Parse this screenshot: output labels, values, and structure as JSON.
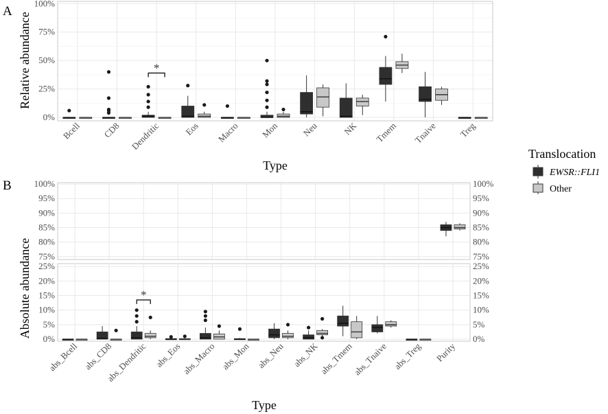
{
  "legend": {
    "title": "Translocation",
    "items": [
      {
        "label": "EWSR::FLI1",
        "italic": true,
        "color": "#2f2f2f"
      },
      {
        "label": "Other",
        "italic": false,
        "color": "#c8c8c8"
      }
    ]
  },
  "colors": {
    "group1": "#2f2f2f",
    "group2": "#c8c8c8",
    "outlier": "#1a1a1a",
    "grid": "#e8e8e8",
    "panelBorder": "#c9c9c9"
  },
  "chart_data": [
    {
      "panel": "A",
      "type": "box",
      "xlabel": "Type",
      "ylabel": "Relative abundance",
      "ylim": [
        -0.03,
        1.02
      ],
      "yticks": [
        0,
        0.25,
        0.5,
        0.75,
        1.0
      ],
      "ytick_labels": [
        "0%",
        "25%",
        "50%",
        "75%",
        "100%"
      ],
      "categories": [
        "Bcell",
        "CD8",
        "Dendritic",
        "Eos",
        "Macro",
        "Mon",
        "Neu",
        "NK",
        "Tmem",
        "Tnaive",
        "Treg"
      ],
      "significance": [
        {
          "category": "Dendritic",
          "label": "*",
          "y": 0.39
        }
      ],
      "series": [
        {
          "name": "EWSR::FLI1",
          "boxes": [
            {
              "min": 0,
              "q1": 0,
              "median": 0,
              "q3": 0,
              "max": 0,
              "outliers": [
                0.06
              ]
            },
            {
              "min": 0,
              "q1": 0,
              "median": 0,
              "q3": 0,
              "max": 0,
              "outliers": [
                0.04,
                0.06,
                0.07,
                0.17,
                0.4
              ]
            },
            {
              "min": 0,
              "q1": 0,
              "median": 0.01,
              "q3": 0.02,
              "max": 0.05,
              "outliers": [
                0.09,
                0.14,
                0.2,
                0.27
              ]
            },
            {
              "min": 0,
              "q1": 0,
              "median": 0.01,
              "q3": 0.1,
              "max": 0.19,
              "outliers": [
                0.28
              ]
            },
            {
              "min": 0,
              "q1": 0,
              "median": 0,
              "q3": 0,
              "max": 0,
              "outliers": [
                0.1
              ]
            },
            {
              "min": 0,
              "q1": 0,
              "median": 0,
              "q3": 0.02,
              "max": 0.05,
              "outliers": [
                0.09,
                0.15,
                0.22,
                0.29,
                0.32,
                0.5
              ]
            },
            {
              "min": 0,
              "q1": 0.03,
              "median": 0.05,
              "q3": 0.22,
              "max": 0.37,
              "outliers": []
            },
            {
              "min": 0,
              "q1": 0,
              "median": 0.01,
              "q3": 0.17,
              "max": 0.3,
              "outliers": []
            },
            {
              "min": 0.14,
              "q1": 0.29,
              "median": 0.34,
              "q3": 0.44,
              "max": 0.54,
              "outliers": [
                0.71
              ]
            },
            {
              "min": 0,
              "q1": 0.14,
              "median": 0.16,
              "q3": 0.27,
              "max": 0.4,
              "outliers": []
            },
            {
              "min": 0,
              "q1": 0,
              "median": 0,
              "q3": 0,
              "max": 0,
              "outliers": []
            }
          ]
        },
        {
          "name": "Other",
          "boxes": [
            {
              "min": 0,
              "q1": 0,
              "median": 0,
              "q3": 0,
              "max": 0,
              "outliers": []
            },
            {
              "min": 0,
              "q1": 0,
              "median": 0,
              "q3": 0,
              "max": 0,
              "outliers": []
            },
            {
              "min": 0,
              "q1": 0,
              "median": 0,
              "q3": 0,
              "max": 0,
              "outliers": []
            },
            {
              "min": 0,
              "q1": 0,
              "median": 0.01,
              "q3": 0.03,
              "max": 0.05,
              "outliers": [
                0.11
              ]
            },
            {
              "min": 0,
              "q1": 0,
              "median": 0,
              "q3": 0,
              "max": 0,
              "outliers": []
            },
            {
              "min": 0,
              "q1": 0,
              "median": 0.01,
              "q3": 0.03,
              "max": 0.05,
              "outliers": [
                0.07
              ]
            },
            {
              "min": 0.01,
              "q1": 0.09,
              "median": 0.18,
              "q3": 0.26,
              "max": 0.29,
              "outliers": []
            },
            {
              "min": 0.02,
              "q1": 0.1,
              "median": 0.14,
              "q3": 0.17,
              "max": 0.2,
              "outliers": []
            },
            {
              "min": 0.39,
              "q1": 0.43,
              "median": 0.46,
              "q3": 0.49,
              "max": 0.56,
              "outliers": []
            },
            {
              "min": 0.11,
              "q1": 0.15,
              "median": 0.2,
              "q3": 0.25,
              "max": 0.27,
              "outliers": []
            },
            {
              "min": 0,
              "q1": 0,
              "median": 0,
              "q3": 0,
              "max": 0,
              "outliers": []
            }
          ]
        }
      ]
    },
    {
      "panel": "B",
      "type": "box",
      "xlabel": "Type",
      "ylabel": "Absolute abundance",
      "facets": [
        {
          "ylim": [
            0.74,
            1.005
          ],
          "yticks": [
            0.75,
            0.8,
            0.85,
            0.9,
            0.95,
            1.0
          ],
          "ytick_labels": [
            "75%",
            "80%",
            "85%",
            "90%",
            "95%",
            "100%"
          ]
        },
        {
          "ylim": [
            -0.007,
            0.26
          ],
          "yticks": [
            0,
            0.05,
            0.1,
            0.15,
            0.2,
            0.25
          ],
          "ytick_labels": [
            "0%",
            "5%",
            "10%",
            "15%",
            "20%",
            "25%"
          ]
        }
      ],
      "categories": [
        "abs_Bcell",
        "abs_CD8",
        "abs_Dendritic",
        "abs_Eos",
        "abs_Macro",
        "abs_Mon",
        "abs_Neu",
        "abs_NK",
        "abs_Tmem",
        "abs_Tnaive",
        "abs_Treg",
        "Purity"
      ],
      "significance": [
        {
          "category": "abs_Dendritic",
          "label": "*",
          "y": 0.135
        }
      ],
      "series": [
        {
          "name": "EWSR::FLI1",
          "boxes": [
            {
              "min": 0,
              "q1": 0,
              "median": 0,
              "q3": 0,
              "max": 0,
              "outliers": []
            },
            {
              "min": 0,
              "q1": 0,
              "median": 0.003,
              "q3": 0.025,
              "max": 0.045,
              "outliers": []
            },
            {
              "min": 0,
              "q1": 0,
              "median": 0.005,
              "q3": 0.025,
              "max": 0.045,
              "outliers": [
                0.06,
                0.08,
                0.1
              ]
            },
            {
              "min": 0,
              "q1": 0,
              "median": 0,
              "q3": 0.002,
              "max": 0.005,
              "outliers": [
                0.008
              ]
            },
            {
              "min": 0,
              "q1": 0,
              "median": 0.005,
              "q3": 0.02,
              "max": 0.04,
              "outliers": [
                0.065,
                0.08,
                0.095
              ]
            },
            {
              "min": 0,
              "q1": 0,
              "median": 0,
              "q3": 0.002,
              "max": 0.004,
              "outliers": [
                0.035
              ]
            },
            {
              "min": 0,
              "q1": 0.005,
              "median": 0.015,
              "q3": 0.035,
              "max": 0.055,
              "outliers": []
            },
            {
              "min": 0,
              "q1": 0,
              "median": 0.005,
              "q3": 0.015,
              "max": 0.03,
              "outliers": [
                0.04
              ]
            },
            {
              "min": 0.01,
              "q1": 0.045,
              "median": 0.055,
              "q3": 0.08,
              "max": 0.115,
              "outliers": []
            },
            {
              "min": 0.02,
              "q1": 0.025,
              "median": 0.04,
              "q3": 0.05,
              "max": 0.08,
              "outliers": []
            },
            {
              "min": 0,
              "q1": 0,
              "median": 0,
              "q3": 0,
              "max": 0,
              "outliers": []
            },
            {
              "min": 0.82,
              "q1": 0.84,
              "median": 0.85,
              "q3": 0.86,
              "max": 0.87,
              "outliers": []
            }
          ]
        },
        {
          "name": "Other",
          "boxes": [
            {
              "min": 0,
              "q1": 0,
              "median": 0,
              "q3": 0,
              "max": 0,
              "outliers": []
            },
            {
              "min": 0,
              "q1": 0,
              "median": 0,
              "q3": 0,
              "max": 0,
              "outliers": [
                0.03
              ]
            },
            {
              "min": 0,
              "q1": 0.005,
              "median": 0.01,
              "q3": 0.02,
              "max": 0.03,
              "outliers": [
                0.075
              ]
            },
            {
              "min": 0,
              "q1": 0,
              "median": 0,
              "q3": 0.002,
              "max": 0.004,
              "outliers": [
                0.01
              ]
            },
            {
              "min": 0,
              "q1": 0,
              "median": 0.008,
              "q3": 0.018,
              "max": 0.03,
              "outliers": [
                0.045
              ]
            },
            {
              "min": 0,
              "q1": 0,
              "median": 0,
              "q3": 0,
              "max": 0,
              "outliers": []
            },
            {
              "min": 0,
              "q1": 0.005,
              "median": 0.01,
              "q3": 0.02,
              "max": 0.03,
              "outliers": [
                0.05
              ]
            },
            {
              "min": 0.01,
              "q1": 0.015,
              "median": 0.02,
              "q3": 0.03,
              "max": 0.035,
              "outliers": [
                0.005,
                0.07
              ]
            },
            {
              "min": 0,
              "q1": 0.005,
              "median": 0.025,
              "q3": 0.06,
              "max": 0.08,
              "outliers": []
            },
            {
              "min": 0.04,
              "q1": 0.045,
              "median": 0.05,
              "q3": 0.06,
              "max": 0.065,
              "outliers": []
            },
            {
              "min": 0,
              "q1": 0,
              "median": 0,
              "q3": 0,
              "max": 0,
              "outliers": []
            },
            {
              "min": 0.84,
              "q1": 0.845,
              "median": 0.85,
              "q3": 0.86,
              "max": 0.865,
              "outliers": []
            }
          ]
        }
      ]
    }
  ]
}
